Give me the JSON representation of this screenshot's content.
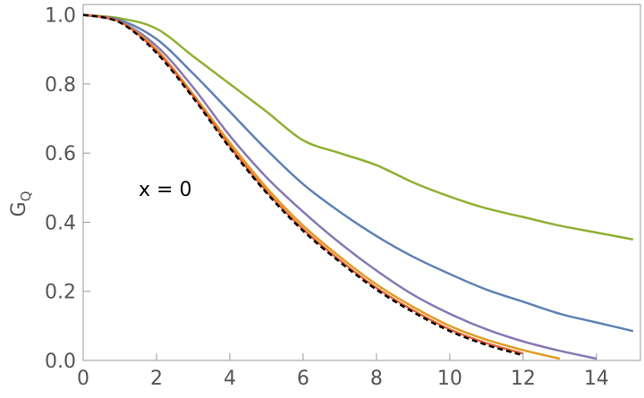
{
  "chart_data": {
    "type": "line",
    "ylabel": "G",
    "ylabel_sub": "Q",
    "annotation": "x = 0",
    "x": [
      0,
      1,
      2,
      3,
      4,
      5,
      6,
      7,
      8,
      9,
      10,
      11,
      12,
      13,
      14,
      15
    ],
    "xlim": [
      0,
      15.2
    ],
    "ylim": [
      0,
      1.03
    ],
    "xticks": [
      0,
      2,
      4,
      6,
      8,
      10,
      12,
      14
    ],
    "yticks": [
      {
        "value": 0,
        "label": "0.0"
      },
      0.2,
      0.4,
      0.6,
      0.8,
      {
        "value": 1,
        "label": "1.0"
      }
    ],
    "series": [
      {
        "color": "#8fb032",
        "values": [
          1,
          0.99,
          0.96,
          0.88,
          0.8,
          0.72,
          0.637,
          0.6,
          0.565,
          0.515,
          0.474,
          0.44,
          0.415,
          0.39,
          0.37,
          0.35
        ]
      },
      {
        "color": "#5e81b5",
        "values": [
          1,
          0.985,
          0.93,
          0.83,
          0.72,
          0.61,
          0.51,
          0.43,
          0.36,
          0.3,
          0.25,
          0.205,
          0.17,
          0.135,
          0.11,
          0.085
        ]
      },
      {
        "color": "#8778b3",
        "values": [
          1,
          0.98,
          0.91,
          0.79,
          0.65,
          0.53,
          0.43,
          0.34,
          0.26,
          0.19,
          0.135,
          0.09,
          0.055,
          0.028,
          0.005,
          null
        ]
      },
      {
        "color": "#e19c24",
        "values": [
          1,
          0.98,
          0.9,
          0.77,
          0.63,
          0.5,
          0.39,
          0.3,
          0.22,
          0.155,
          0.1,
          0.06,
          0.03,
          0.005,
          null,
          null
        ]
      },
      {
        "color": "#eb6235",
        "values": [
          1,
          0.98,
          0.895,
          0.765,
          0.62,
          0.49,
          0.38,
          0.29,
          0.21,
          0.145,
          0.09,
          0.05,
          0.02,
          null,
          null,
          null
        ]
      },
      {
        "color": "#000000",
        "dashed": true,
        "values": [
          1,
          0.978,
          0.89,
          0.76,
          0.615,
          0.485,
          0.375,
          0.285,
          0.205,
          0.14,
          0.085,
          0.045,
          0.015,
          null,
          null,
          null
        ]
      }
    ]
  }
}
